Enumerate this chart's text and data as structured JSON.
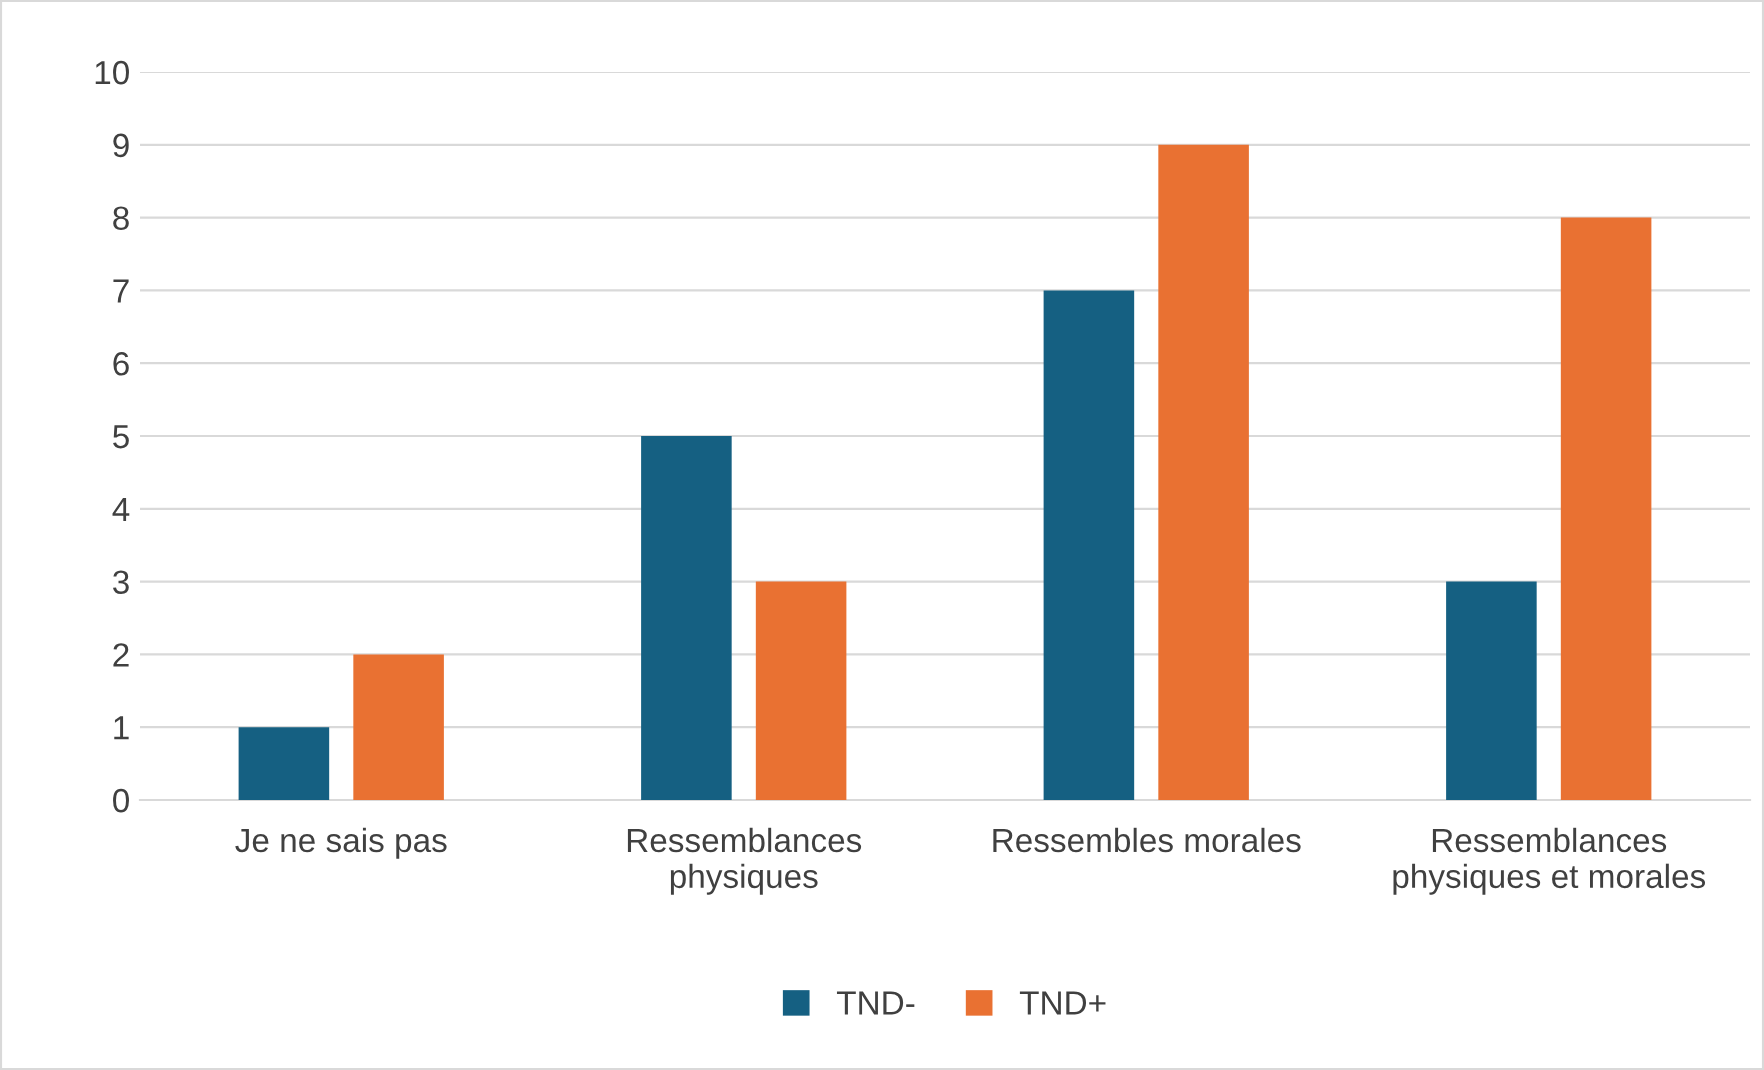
{
  "chart_data": {
    "type": "bar",
    "categories": [
      "Je ne sais pas",
      "Ressemblances\nphysiques",
      "Ressembles morales",
      "Ressemblances\nphysiques et morales"
    ],
    "series": [
      {
        "name": "TND-",
        "color": "#156082",
        "values": [
          1,
          5,
          7,
          3
        ]
      },
      {
        "name": "TND+",
        "color": "#e97132",
        "values": [
          2,
          3,
          9,
          8
        ]
      }
    ],
    "ylim": [
      0,
      10
    ],
    "yticks": [
      0,
      1,
      2,
      3,
      4,
      5,
      6,
      7,
      8,
      9,
      10
    ],
    "grid": "y",
    "legend": "bottom"
  }
}
